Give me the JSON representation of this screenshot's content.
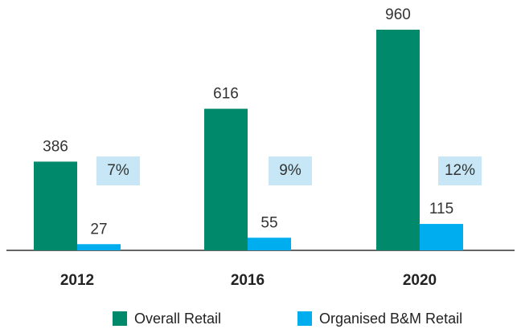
{
  "chart_data": {
    "type": "bar",
    "categories": [
      "2012",
      "2016",
      "2020"
    ],
    "series": [
      {
        "name": "Overall Retail",
        "color": "#00896b",
        "values": [
          386,
          616,
          960
        ]
      },
      {
        "name": "Organised B&M Retail",
        "color": "#00aeef",
        "values": [
          27,
          55,
          115
        ]
      }
    ],
    "annotations": [
      "7%",
      "9%",
      "12%"
    ],
    "annotation_color": "#c7e7f6"
  }
}
